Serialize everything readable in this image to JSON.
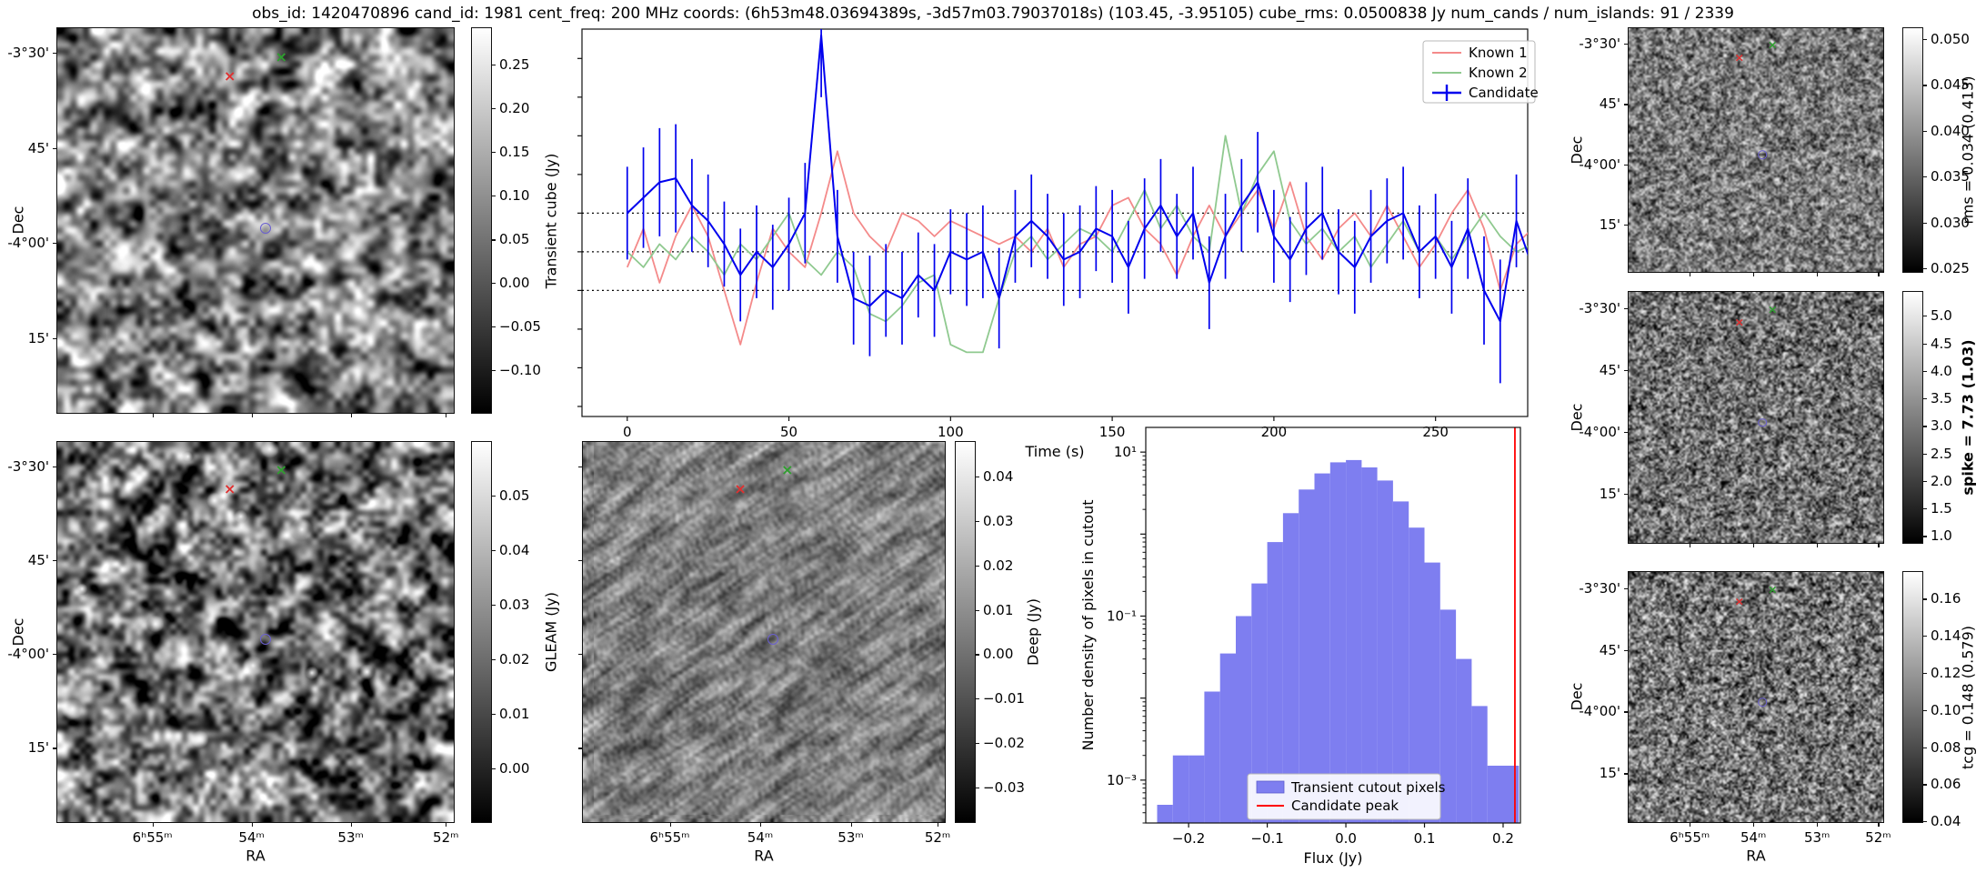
{
  "title": "obs_id: 1420470896 cand_id: 1981 cent_freq: 200 MHz coords: (6h53m48.03694389s, -3d57m03.79037018s) (103.45, -3.95105) cube_rms: 0.0500838 Jy num_cands / num_islands: 91 / 2339",
  "axes": {
    "dec_label": "Dec",
    "ra_label": "RA",
    "dec_ticks": [
      "-3°30'",
      "45'",
      "-4°00'",
      "15'"
    ],
    "ra_ticks": [
      "6ʰ55ᵐ",
      "54ᵐ",
      "53ᵐ",
      "52ᵐ"
    ]
  },
  "markers": {
    "known1": {
      "glyph": "x",
      "color": "#e03030",
      "fx": 0.435,
      "fy": 0.125
    },
    "known2": {
      "glyph": "x",
      "color": "#2f9e2f",
      "fx": 0.565,
      "fy": 0.075
    },
    "candidate": {
      "glyph": "circle",
      "color": "#6a5fd0",
      "fx": 0.525,
      "fy": 0.52
    }
  },
  "colorbars": {
    "transient": {
      "label": "Transient cube (Jy)",
      "bold": false,
      "ticks": [
        "0.25",
        "0.20",
        "0.15",
        "0.10",
        "0.05",
        "0.00",
        "−0.05",
        "−0.10"
      ],
      "fracs": [
        0.097,
        0.21,
        0.323,
        0.436,
        0.549,
        0.661,
        0.774,
        0.887
      ]
    },
    "gleam": {
      "label": "GLEAM (Jy)",
      "bold": false,
      "ticks": [
        "0.05",
        "0.04",
        "0.03",
        "0.02",
        "0.01",
        "0.00"
      ],
      "fracs": [
        0.143,
        0.286,
        0.429,
        0.571,
        0.714,
        0.857
      ]
    },
    "deep": {
      "label": "Deep (Jy)",
      "bold": false,
      "ticks": [
        "0.04",
        "0.03",
        "0.02",
        "0.01",
        "0.00",
        "−0.01",
        "−0.02",
        "−0.03"
      ],
      "fracs": [
        0.093,
        0.209,
        0.326,
        0.442,
        0.558,
        0.674,
        0.791,
        0.907
      ]
    },
    "rms": {
      "label": "rms = 0.034 (0.413)",
      "bold": false,
      "ticks": [
        "0.050",
        "0.045",
        "0.040",
        "0.035",
        "0.030",
        "0.025"
      ],
      "fracs": [
        0.049,
        0.235,
        0.422,
        0.608,
        0.795,
        0.981
      ]
    },
    "spike": {
      "label": "spike = 7.73 (1.03)",
      "bold": true,
      "ticks": [
        "5.0",
        "4.5",
        "4.0",
        "3.5",
        "3.0",
        "2.5",
        "2.0",
        "1.5",
        "1.0"
      ],
      "fracs": [
        0.098,
        0.207,
        0.316,
        0.425,
        0.534,
        0.643,
        0.752,
        0.86,
        0.969
      ]
    },
    "tcg": {
      "label": "tcg = 0.148 (0.579)",
      "bold": false,
      "ticks": [
        "0.16",
        "0.14",
        "0.12",
        "0.10",
        "0.08",
        "0.06",
        "0.04"
      ],
      "fracs": [
        0.11,
        0.257,
        0.404,
        0.551,
        0.699,
        0.846,
        0.993
      ]
    }
  },
  "chart_data": [
    {
      "type": "line",
      "id": "lightcurve",
      "title": "",
      "xlabel": "Time (s)",
      "ylabel": "",
      "xlim": [
        -14,
        278.5
      ],
      "ylim": [
        -0.213,
        0.288
      ],
      "x_ticks": [
        0,
        50,
        100,
        150,
        200,
        250
      ],
      "hlines": [
        0.05,
        0.0,
        -0.05
      ],
      "legend_position": "upper right",
      "x": [
        0,
        5,
        10,
        15,
        20,
        25,
        30,
        35,
        40,
        45,
        50,
        55,
        60,
        65,
        70,
        75,
        80,
        85,
        90,
        95,
        100,
        105,
        110,
        115,
        120,
        125,
        130,
        135,
        140,
        145,
        150,
        155,
        160,
        165,
        170,
        175,
        180,
        185,
        190,
        195,
        200,
        205,
        210,
        215,
        220,
        225,
        230,
        235,
        240,
        245,
        250,
        255,
        260,
        265,
        270,
        275,
        280
      ],
      "series": [
        {
          "name": "Known 1",
          "color": "#f48a8a",
          "values": [
            -0.02,
            0.03,
            -0.04,
            0.02,
            0.06,
            0.02,
            -0.05,
            -0.12,
            -0.04,
            0.03,
            0.0,
            -0.02,
            0.05,
            0.13,
            0.05,
            0.02,
            0.0,
            0.05,
            0.04,
            0.02,
            0.04,
            0.03,
            0.02,
            0.01,
            0.02,
            0.0,
            0.03,
            -0.02,
            0.01,
            0.02,
            0.06,
            0.07,
            0.03,
            0.01,
            -0.03,
            0.02,
            0.06,
            0.02,
            0.05,
            0.08,
            0.03,
            0.09,
            0.02,
            -0.01,
            0.03,
            0.05,
            0.02,
            0.06,
            0.02,
            -0.02,
            0.01,
            0.05,
            0.08,
            0.03,
            -0.05,
            0.01,
            0.03
          ]
        },
        {
          "name": "Known 2",
          "color": "#8fc98f",
          "values": [
            0.0,
            -0.02,
            0.01,
            -0.01,
            0.02,
            0.0,
            -0.03,
            0.01,
            -0.01,
            0.02,
            0.05,
            -0.01,
            -0.03,
            0.0,
            -0.02,
            -0.08,
            -0.09,
            -0.07,
            -0.04,
            -0.03,
            -0.12,
            -0.13,
            -0.13,
            -0.06,
            0.0,
            0.02,
            -0.01,
            0.01,
            0.03,
            0.02,
            0.0,
            0.04,
            0.08,
            0.03,
            0.06,
            0.02,
            0.0,
            0.15,
            0.05,
            0.1,
            0.13,
            0.04,
            0.01,
            0.03,
            0.0,
            0.02,
            -0.02,
            0.01,
            0.04,
            0.0,
            0.02,
            -0.01,
            0.02,
            0.05,
            0.02,
            0.0,
            0.01
          ]
        },
        {
          "name": "Candidate",
          "color": "#0000ee",
          "values": [
            0.05,
            0.07,
            0.09,
            0.095,
            0.06,
            0.04,
            0.01,
            -0.03,
            0.0,
            -0.02,
            0.01,
            0.05,
            0.28,
            0.02,
            -0.06,
            -0.07,
            -0.05,
            -0.06,
            -0.03,
            -0.05,
            0.0,
            -0.01,
            0.0,
            -0.06,
            0.02,
            0.04,
            0.02,
            -0.01,
            0.0,
            0.03,
            0.02,
            -0.02,
            0.03,
            0.06,
            0.02,
            0.05,
            -0.04,
            0.02,
            0.06,
            0.09,
            0.02,
            -0.01,
            0.03,
            0.05,
            0.0,
            -0.02,
            0.02,
            0.04,
            0.05,
            0.0,
            0.02,
            -0.02,
            0.03,
            -0.05,
            -0.09,
            0.04,
            -0.02
          ],
          "yerr": [
            0.06,
            0.065,
            0.07,
            0.07,
            0.06,
            0.06,
            0.055,
            0.06,
            0.06,
            0.055,
            0.06,
            0.065,
            0.08,
            0.06,
            0.06,
            0.065,
            0.06,
            0.06,
            0.055,
            0.06,
            0.055,
            0.06,
            0.06,
            0.065,
            0.06,
            0.06,
            0.055,
            0.06,
            0.06,
            0.055,
            0.06,
            0.06,
            0.065,
            0.06,
            0.055,
            0.06,
            0.06,
            0.055,
            0.06,
            0.065,
            0.06,
            0.055,
            0.06,
            0.06,
            0.055,
            0.06,
            0.06,
            0.055,
            0.06,
            0.06,
            0.055,
            0.06,
            0.065,
            0.07,
            0.08,
            0.06,
            0.06
          ]
        }
      ]
    },
    {
      "type": "bar",
      "id": "flux-histogram",
      "xlabel": "Flux (Jy)",
      "ylabel": "Number density of pixels in cutout",
      "yscale": "log",
      "fill_color": "#7e7ef0",
      "line_color": "#ff0000",
      "bin_width": 0.02,
      "bin_centers": [
        -0.23,
        -0.21,
        -0.19,
        -0.17,
        -0.15,
        -0.13,
        -0.11,
        -0.09,
        -0.07,
        -0.05,
        -0.03,
        -0.01,
        0.01,
        0.03,
        0.05,
        0.07,
        0.09,
        0.11,
        0.13,
        0.15,
        0.17,
        0.19,
        0.21
      ],
      "densities": [
        0.0005,
        0.002,
        0.002,
        0.012,
        0.035,
        0.1,
        0.25,
        0.8,
        1.8,
        3.5,
        5.5,
        7.5,
        8.0,
        6.5,
        4.5,
        2.5,
        1.2,
        0.45,
        0.12,
        0.03,
        0.008,
        0.0015,
        0.0015
      ],
      "candidate_peak_flux": 0.215,
      "xlim": [
        -0.2545,
        0.222
      ],
      "ylim": [
        0.0003,
        20
      ],
      "x_tick_values": [
        -0.2,
        -0.1,
        0.0,
        0.1,
        0.2
      ],
      "x_tick_labels": [
        "−0.2",
        "−0.1",
        "0.0",
        "0.1",
        "0.2"
      ],
      "y_tick_values": [
        10,
        0.1,
        0.001
      ],
      "y_tick_labels": [
        "10¹",
        "10⁻¹",
        "10⁻³"
      ],
      "legend": [
        "Transient cutout pixels",
        "Candidate peak"
      ]
    }
  ]
}
